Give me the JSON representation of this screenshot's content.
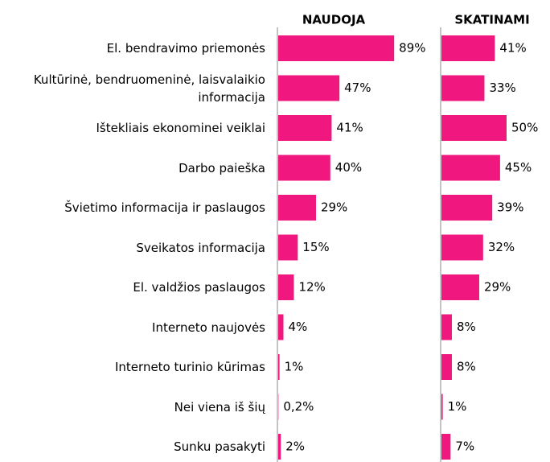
{
  "chart_data": {
    "type": "bar",
    "orientation": "horizontal",
    "categories": [
      "El. bendravimo priemonės",
      "Kultūrinė, bendruomeninė, laisvalaikio informacija",
      "Ištekliais ekonominei veiklai",
      "Darbo paieška",
      "Švietimo informacija ir paslaugos",
      "Sveikatos informacija",
      "El. valdžios paslaugos",
      "Interneto naujovės",
      "Interneto turinio kūrimas",
      "Nei viena iš šių",
      "Sunku pasakyti"
    ],
    "series": [
      {
        "name": "NAUDOJA",
        "color": "#f0177f",
        "values": [
          89,
          47,
          41,
          40,
          29,
          15,
          12,
          4,
          1,
          0.2,
          2
        ],
        "value_labels": [
          "89%",
          "47%",
          "41%",
          "40%",
          "29%",
          "15%",
          "12%",
          "4%",
          "1%",
          "0,2%",
          "2%"
        ]
      },
      {
        "name": "SKATINAMI",
        "color": "#f0177f",
        "values": [
          41,
          33,
          50,
          45,
          39,
          32,
          29,
          8,
          8,
          1,
          7
        ],
        "value_labels": [
          "41%",
          "33%",
          "50%",
          "45%",
          "39%",
          "32%",
          "29%",
          "8%",
          "8%",
          "1%",
          "7%"
        ]
      }
    ]
  }
}
